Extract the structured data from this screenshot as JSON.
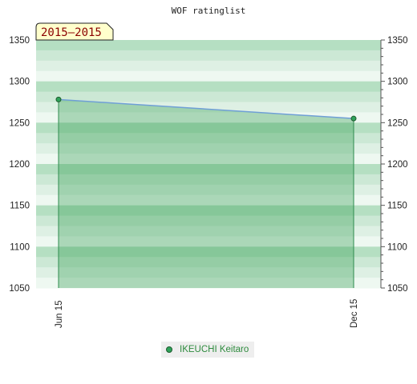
{
  "chart_data": {
    "type": "area",
    "title": "WOF ratinglist",
    "period_label": "2015–2015",
    "x": [
      "Jun 15",
      "Dec 15"
    ],
    "series": [
      {
        "name": "IKEUCHI Keitaro",
        "values": [
          1278,
          1255
        ]
      }
    ],
    "ylim": [
      1050,
      1350
    ],
    "yticks": [
      1050,
      1100,
      1150,
      1200,
      1250,
      1300,
      1350
    ],
    "grid": "alternating horizontal bands",
    "legend_position": "bottom-center",
    "colors": {
      "bands": [
        "#b5dfc2",
        "#cce8d5",
        "#def0e4",
        "#eef8f1"
      ],
      "area_fill": "#2e9a4e",
      "line": "#6f9fd6",
      "marker": "#2fa35a",
      "period_fill": "#ffffcc",
      "period_text": "#8b0000"
    }
  }
}
